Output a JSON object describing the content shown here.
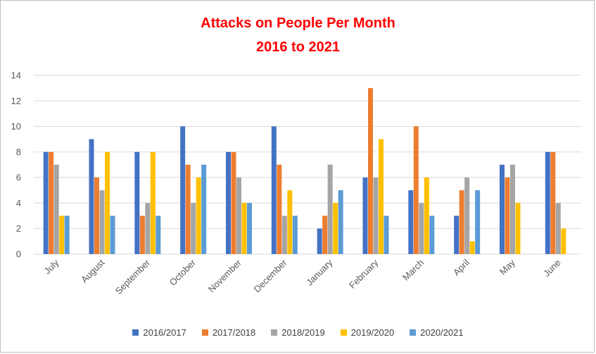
{
  "chart_data": {
    "type": "bar",
    "title": "Attacks on People Per Month",
    "subtitle": "2016 to 2021",
    "xlabel": "",
    "ylabel": "",
    "ylim": [
      0,
      14
    ],
    "yticks": [
      0,
      2,
      4,
      6,
      8,
      10,
      12,
      14
    ],
    "grid": true,
    "legend_position": "bottom",
    "categories": [
      "July",
      "August",
      "September",
      "October",
      "November",
      "December",
      "January",
      "February",
      "March",
      "April",
      "May",
      "June"
    ],
    "series": [
      {
        "name": "2016/2017",
        "color": "#4472c4",
        "values": [
          8,
          9,
          8,
          10,
          8,
          10,
          2,
          6,
          5,
          3,
          7,
          8
        ]
      },
      {
        "name": "2017/2018",
        "color": "#ed7d31",
        "values": [
          8,
          6,
          3,
          7,
          8,
          7,
          3,
          13,
          10,
          5,
          6,
          8
        ]
      },
      {
        "name": "2018/2019",
        "color": "#a5a5a5",
        "values": [
          7,
          5,
          4,
          4,
          6,
          3,
          7,
          6,
          4,
          6,
          7,
          4
        ]
      },
      {
        "name": "2019/2020",
        "color": "#ffc000",
        "values": [
          3,
          8,
          8,
          6,
          4,
          5,
          4,
          9,
          6,
          1,
          4,
          2
        ]
      },
      {
        "name": "2020/2021",
        "color": "#5b9bd5",
        "values": [
          3,
          3,
          3,
          7,
          4,
          3,
          5,
          3,
          3,
          5,
          null,
          null
        ]
      }
    ]
  }
}
